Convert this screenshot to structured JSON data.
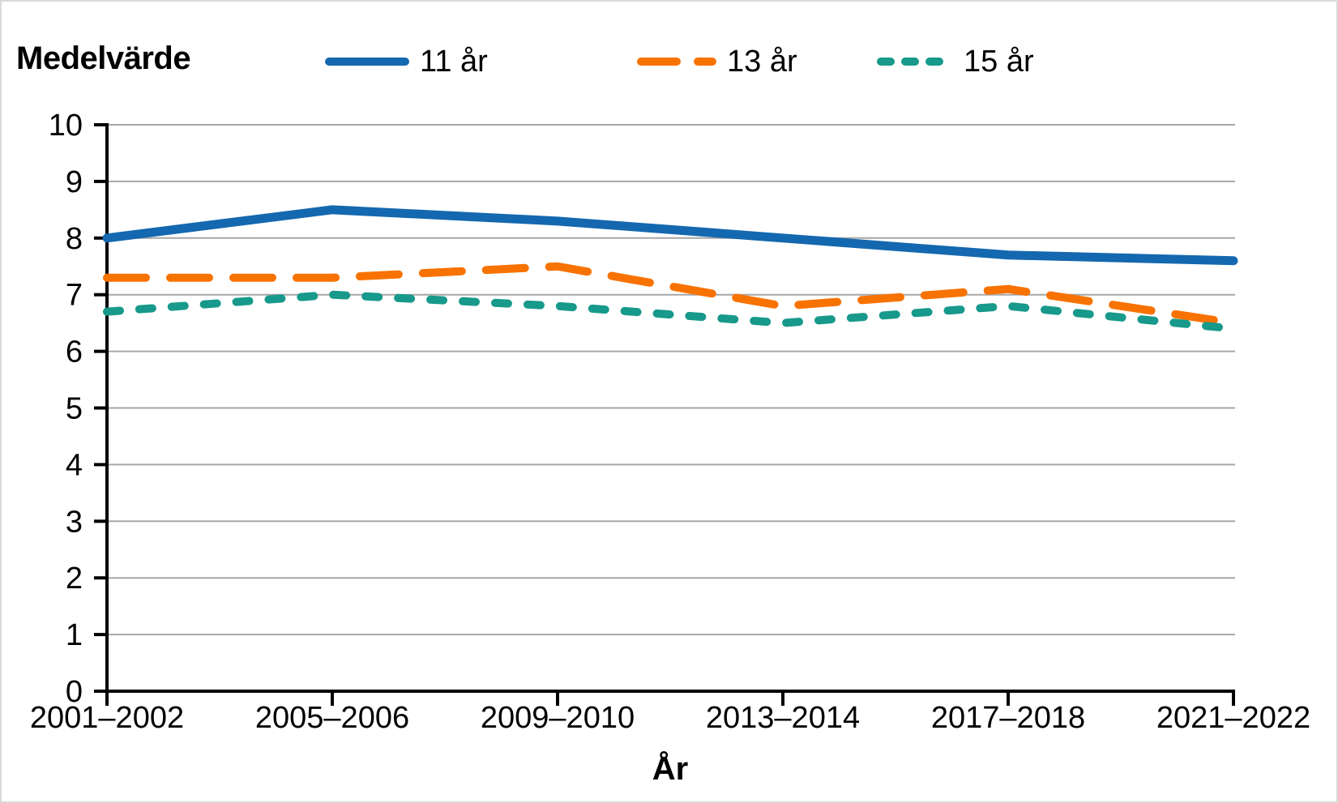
{
  "chart_data": {
    "type": "line",
    "title": "Medelvärde",
    "x_title": "År",
    "categories": [
      "2001–2002",
      "2005–2006",
      "2009–2010",
      "2013–2014",
      "2017–2018",
      "2021–2022"
    ],
    "ylim": [
      0,
      10
    ],
    "ytick_step": 1,
    "yticks": [
      0,
      1,
      2,
      3,
      4,
      5,
      6,
      7,
      8,
      9,
      10
    ],
    "grid": "horizontal",
    "legend_position": "top",
    "series": [
      {
        "name": "11 år",
        "color": "#1468AF",
        "line_style": "solid",
        "values": [
          8.0,
          8.5,
          8.3,
          8.0,
          7.7,
          7.6
        ]
      },
      {
        "name": "13 år",
        "color": "#F87200",
        "line_style": "long-dash",
        "values": [
          7.3,
          7.3,
          7.5,
          6.8,
          7.1,
          6.5
        ]
      },
      {
        "name": "15 år",
        "color": "#17998B",
        "line_style": "short-dash",
        "values": [
          6.7,
          7.0,
          6.8,
          6.5,
          6.8,
          6.4
        ]
      }
    ],
    "colors": {
      "gridline": "#A6A6A6",
      "axis": "#000000",
      "text": "#000000",
      "background": "#FFFFFF"
    }
  }
}
